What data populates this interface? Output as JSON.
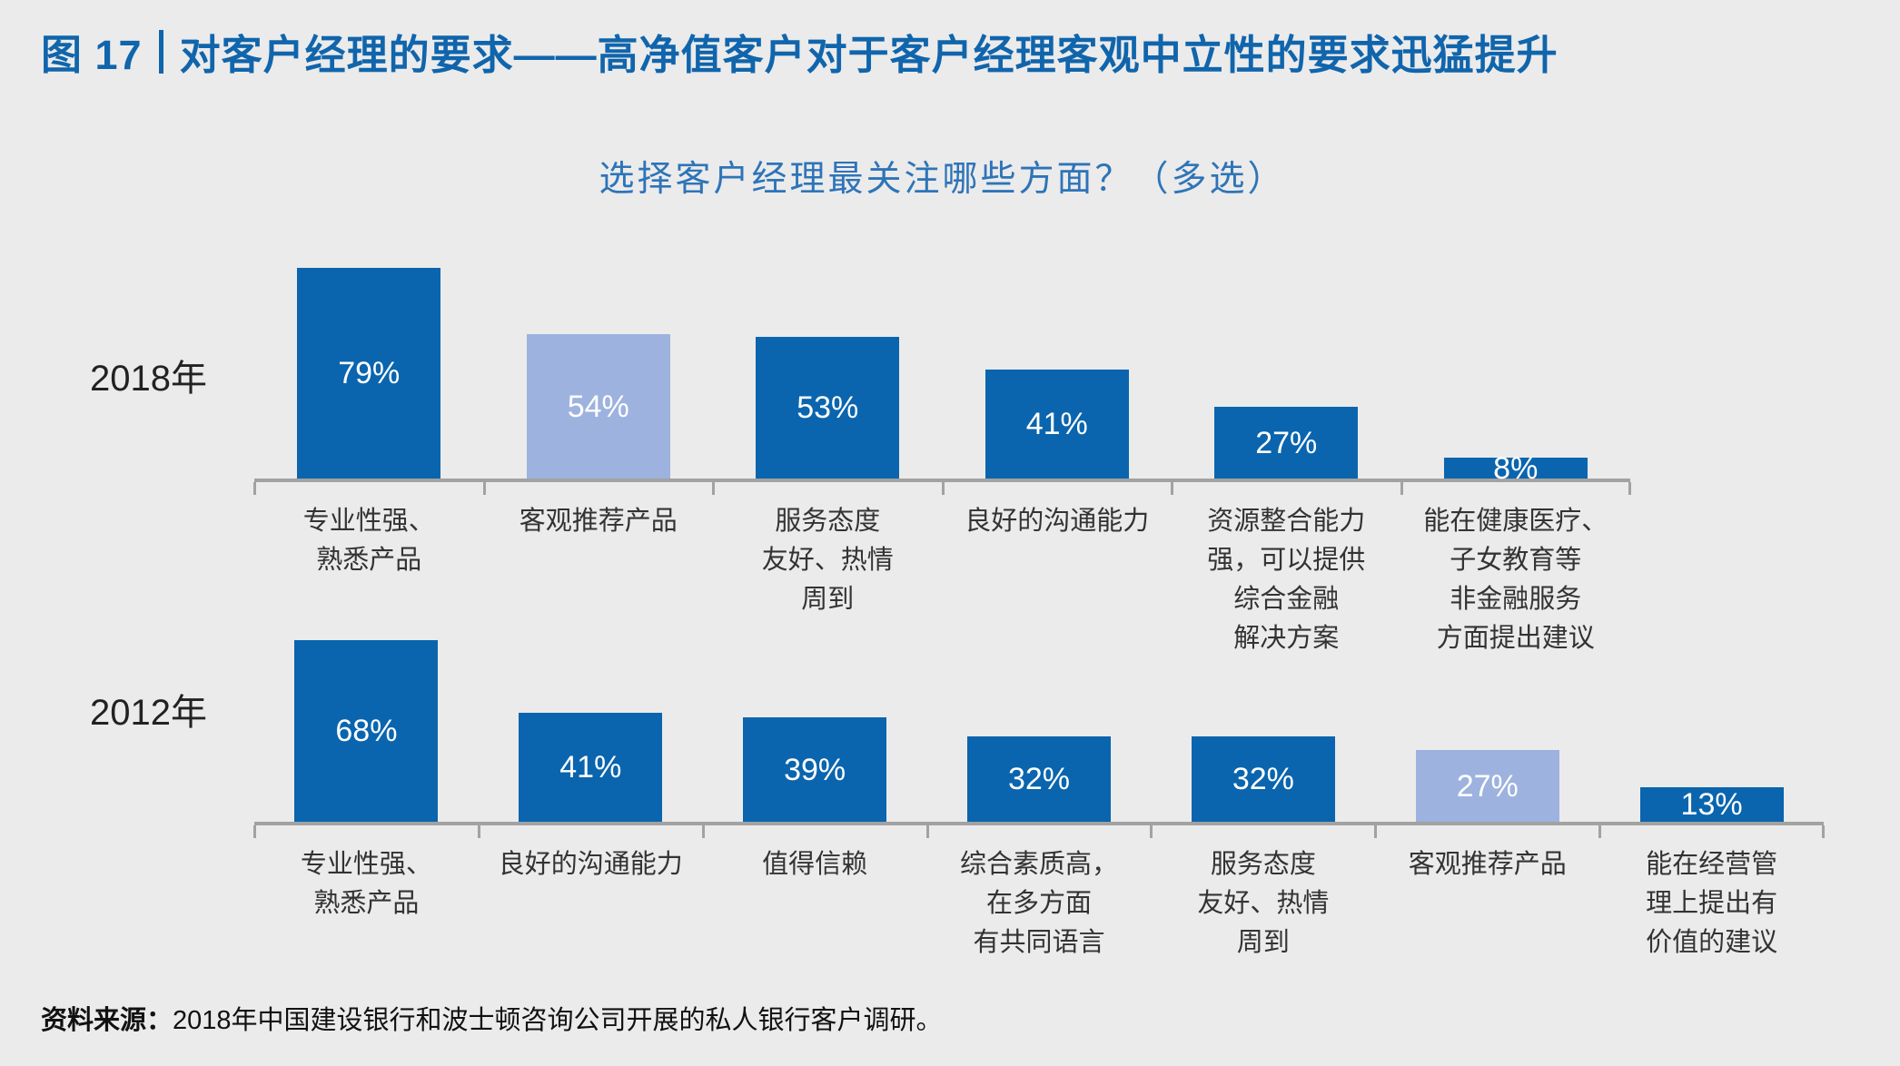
{
  "header": {
    "figure_label": "图 17",
    "title": "对客户经理的要求——高净值客户对于客户经理客观中立性的要求迅猛提升"
  },
  "chart": {
    "question": "选择客户经理最关注哪些方面？（多选）"
  },
  "chart_data": {
    "type": "bar",
    "title": "选择客户经理最关注哪些方面？（多选）",
    "value_format": "percent",
    "ylim": [
      0,
      80
    ],
    "grid": false,
    "legend_position": "none",
    "colors": {
      "bar_default": "#0A65AE",
      "bar_highlight": "#9DB2DE"
    },
    "highlighted_category": "客观推荐产品",
    "series": [
      {
        "name": "2018年",
        "categories": [
          "专业性强、\n熟悉产品",
          "客观推荐产品",
          "服务态度\n友好、热情\n周到",
          "良好的沟通能力",
          "资源整合能力\n强，可以提供\n综合金融\n解决方案",
          "能在健康医疗、\n子女教育等\n非金融服务\n方面提出建议"
        ],
        "values": [
          79,
          54,
          53,
          41,
          27,
          8
        ],
        "highlight_indexes": [
          1
        ]
      },
      {
        "name": "2012年",
        "categories": [
          "专业性强、\n熟悉产品",
          "良好的沟通能力",
          "值得信赖",
          "综合素质高，\n在多方面\n有共同语言",
          "服务态度\n友好、热情\n周到",
          "客观推荐产品",
          "能在经营管\n理上提出有\n价值的建议"
        ],
        "values": [
          68,
          41,
          39,
          32,
          32,
          27,
          13
        ],
        "highlight_indexes": [
          5
        ]
      }
    ]
  },
  "footer": {
    "source_label": "资料来源：",
    "source_text": "2018年中国建设银行和波士顿咨询公司开展的私人银行客户调研。"
  }
}
